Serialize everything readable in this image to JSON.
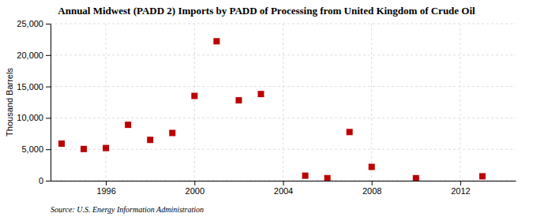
{
  "chart_data": {
    "type": "scatter",
    "title": "Annual Midwest (PADD 2) Imports by PADD of Processing from United Kingdom of Crude Oil",
    "ylabel": "Thousand Barrels",
    "annotation": "Source: U.S. Energy Information Administration",
    "x": [
      1994,
      1995,
      1996,
      1997,
      1998,
      1999,
      2000,
      2001,
      2002,
      2003,
      2005,
      2006,
      2007,
      2008,
      2010,
      2013
    ],
    "values": [
      5900,
      5050,
      5200,
      8900,
      6500,
      7600,
      13500,
      22200,
      12800,
      13800,
      800,
      400,
      7750,
      2200,
      400,
      700
    ],
    "color": "#bb0000",
    "marker": "square",
    "xlim": [
      1993.5,
      2014.5
    ],
    "ylim": [
      0,
      25000
    ],
    "xticks": [
      1996,
      2000,
      2004,
      2008,
      2012
    ],
    "yticks": [
      0,
      {
        "value": 5000,
        "label": "5,000"
      },
      {
        "value": 10000,
        "label": "10,000"
      },
      {
        "value": 15000,
        "label": "15,000"
      },
      {
        "value": 20000,
        "label": "20,000"
      },
      {
        "value": 25000,
        "label": "25,000"
      }
    ],
    "grid": true
  }
}
